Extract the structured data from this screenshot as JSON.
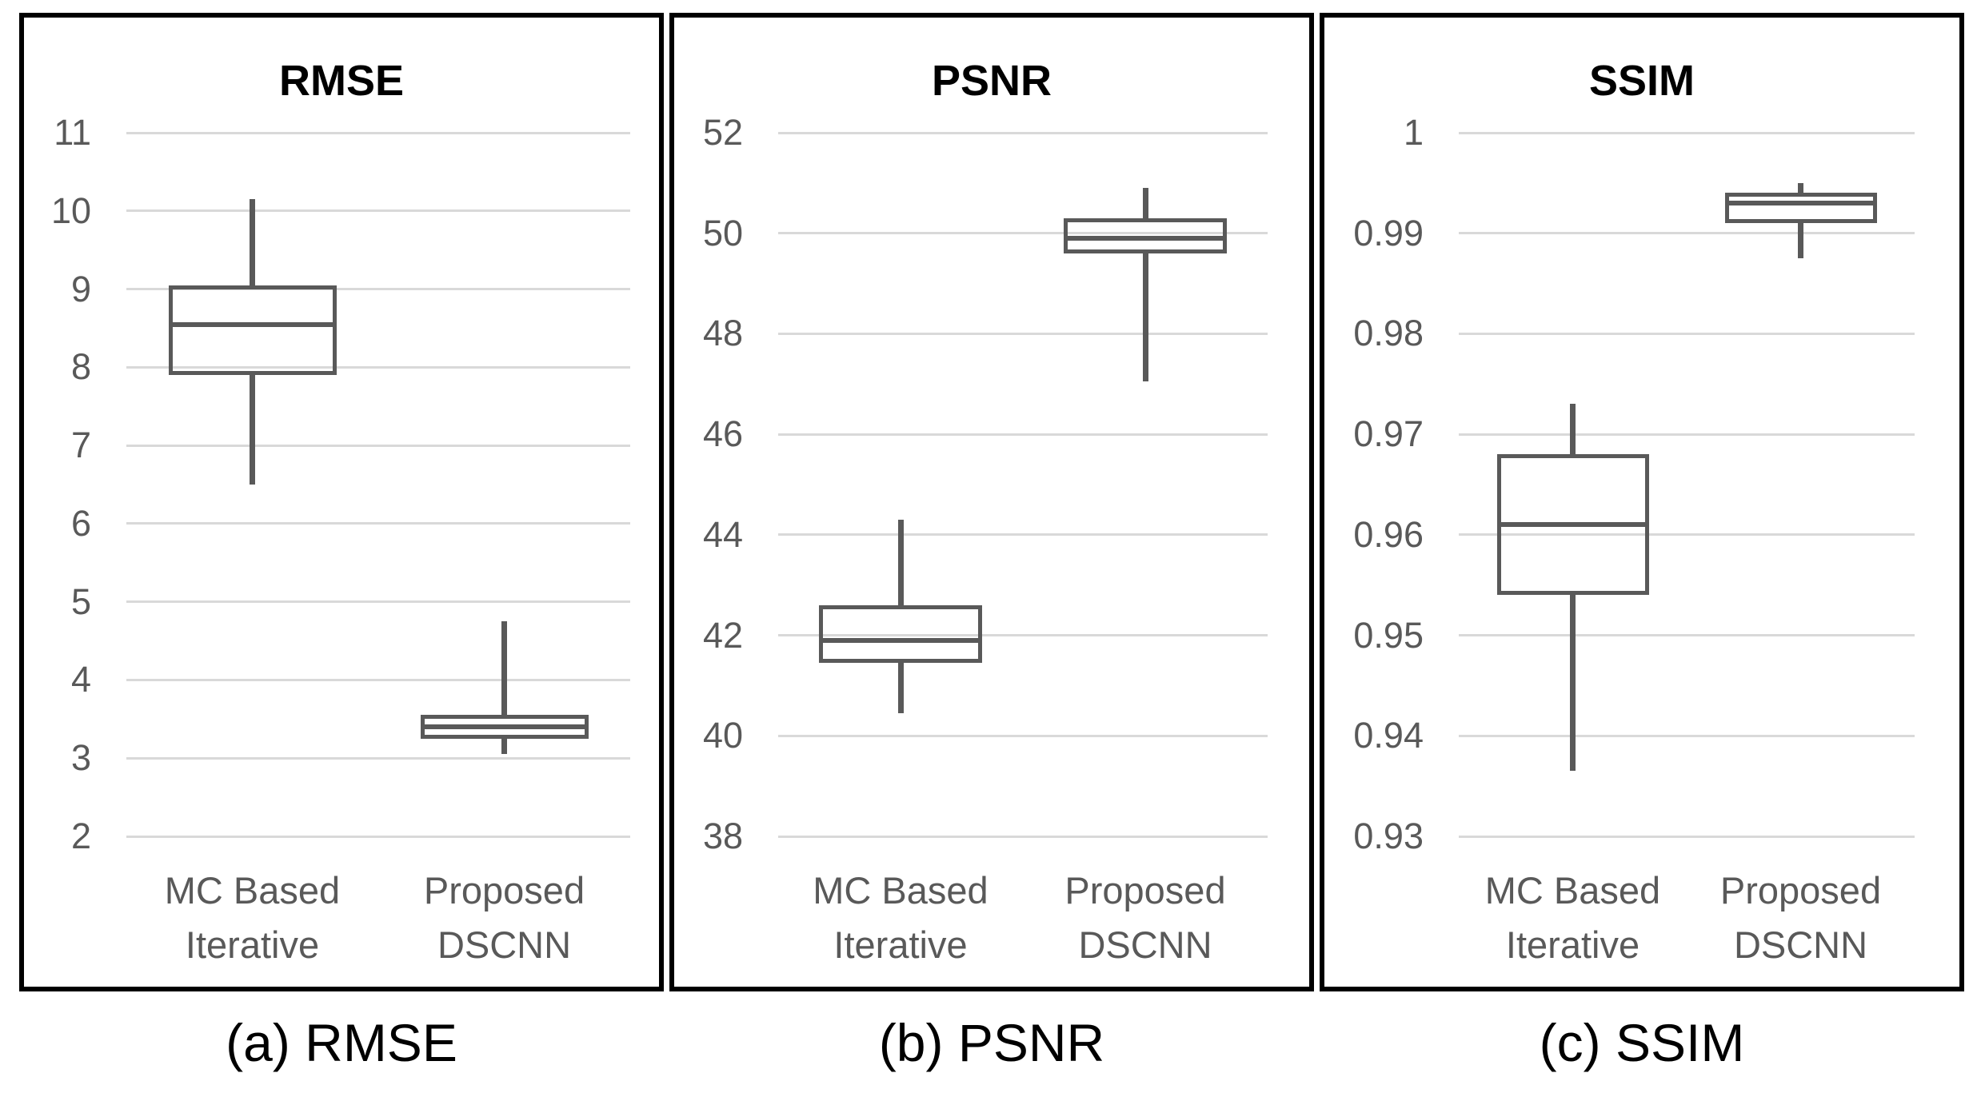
{
  "colors": {
    "panel_border": "#000000",
    "background": "#ffffff",
    "gridline": "#d9d9d9",
    "box_stroke": "#595959",
    "axis_label": "#595959",
    "title": "#000000",
    "caption": "#000000"
  },
  "chart_data": [
    {
      "type": "box",
      "title": "RMSE",
      "caption": "(a) RMSE",
      "categories": [
        "MC Based\nIterative",
        "Proposed\nDSCNN"
      ],
      "ylabel": "",
      "grid": true,
      "ytick_labels": [
        "11",
        "10",
        "9",
        "8",
        "7",
        "6",
        "5",
        "4",
        "3",
        "2"
      ],
      "ytick_values": [
        11,
        10,
        9,
        8,
        7,
        6,
        5,
        4,
        3,
        2
      ],
      "ylim": [
        2,
        11
      ],
      "series": [
        {
          "name": "MC Based Iterative",
          "whisker_low": 6.5,
          "q1": 7.9,
          "median": 8.55,
          "q3": 9.05,
          "whisker_high": 10.15
        },
        {
          "name": "Proposed DSCNN",
          "whisker_low": 3.05,
          "q1": 3.25,
          "median": 3.4,
          "q3": 3.55,
          "whisker_high": 4.75
        }
      ]
    },
    {
      "type": "box",
      "title": "PSNR",
      "caption": "(b) PSNR",
      "categories": [
        "MC Based\nIterative",
        "Proposed\nDSCNN"
      ],
      "ylabel": "",
      "grid": true,
      "ytick_labels": [
        "52",
        "50",
        "48",
        "46",
        "44",
        "42",
        "40",
        "38"
      ],
      "ytick_values": [
        52,
        50,
        48,
        46,
        44,
        42,
        40,
        38
      ],
      "ylim": [
        38,
        52
      ],
      "series": [
        {
          "name": "MC Based Iterative",
          "whisker_low": 40.45,
          "q1": 41.45,
          "median": 41.9,
          "q3": 42.6,
          "whisker_high": 44.3
        },
        {
          "name": "Proposed DSCNN",
          "whisker_low": 47.05,
          "q1": 49.6,
          "median": 49.9,
          "q3": 50.3,
          "whisker_high": 50.9
        }
      ]
    },
    {
      "type": "box",
      "title": "SSIM",
      "caption": "(c) SSIM",
      "categories": [
        "MC Based\nIterative",
        "Proposed\nDSCNN"
      ],
      "ylabel": "",
      "grid": true,
      "ytick_labels": [
        "1",
        "0.99",
        "0.98",
        "0.97",
        "0.96",
        "0.95",
        "0.94",
        "0.93"
      ],
      "ytick_values": [
        1,
        0.99,
        0.98,
        0.97,
        0.96,
        0.95,
        0.94,
        0.93
      ],
      "ylim": [
        0.93,
        1
      ],
      "series": [
        {
          "name": "MC Based Iterative",
          "whisker_low": 0.9365,
          "q1": 0.954,
          "median": 0.961,
          "q3": 0.968,
          "whisker_high": 0.973
        },
        {
          "name": "Proposed DSCNN",
          "whisker_low": 0.9875,
          "q1": 0.991,
          "median": 0.993,
          "q3": 0.994,
          "whisker_high": 0.995
        }
      ]
    }
  ]
}
